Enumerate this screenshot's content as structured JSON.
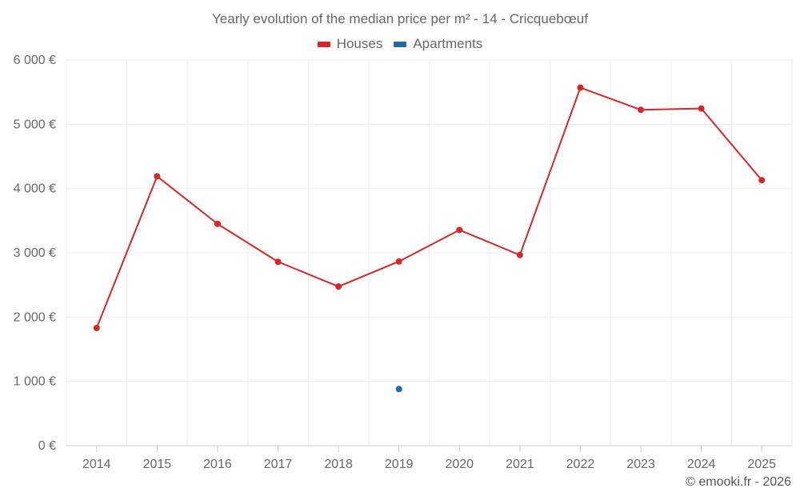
{
  "chart_data": {
    "type": "line",
    "title": "Yearly evolution of the median price per m² - 14 - Cricquebœuf",
    "categories": [
      "2014",
      "2015",
      "2016",
      "2017",
      "2018",
      "2019",
      "2020",
      "2021",
      "2022",
      "2023",
      "2024",
      "2025"
    ],
    "series": [
      {
        "name": "Houses",
        "color": "#d62728",
        "values": [
          1830,
          4190,
          3450,
          2860,
          2475,
          2865,
          3355,
          2965,
          5570,
          5225,
          5245,
          4130
        ]
      },
      {
        "name": "Apartments",
        "color": "#1f6aa5",
        "values": [
          null,
          null,
          null,
          null,
          null,
          880,
          null,
          null,
          null,
          null,
          null,
          null
        ]
      }
    ],
    "y_ticks": [
      0,
      1000,
      2000,
      3000,
      4000,
      5000,
      6000
    ],
    "y_tick_labels": [
      "0 €",
      "1 000 €",
      "2 000 €",
      "3 000 €",
      "4 000 €",
      "5 000 €",
      "6 000 €"
    ],
    "ylim": [
      0,
      6000
    ],
    "xlabel": "",
    "ylabel": "",
    "grid": true,
    "legend_position": "top-center"
  },
  "credit": "© emooki.fr - 2026"
}
